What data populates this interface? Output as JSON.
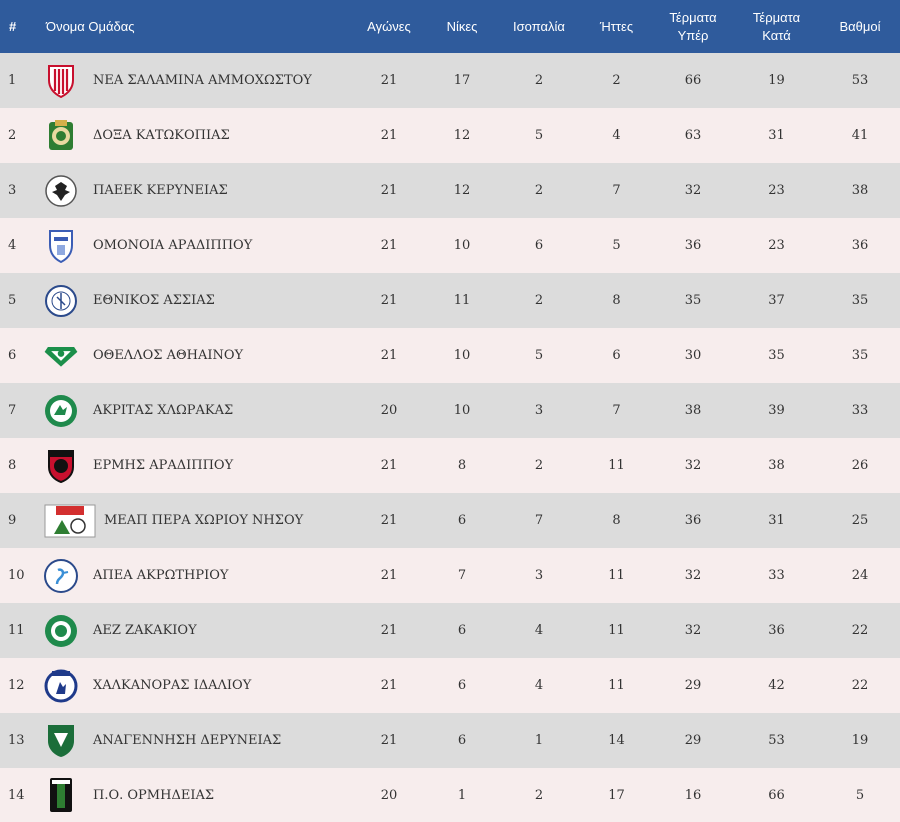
{
  "headers": {
    "pos": "#",
    "team": "Όνομα Ομάδας",
    "played": "Αγώνες",
    "wins": "Νίκες",
    "draws": "Ισοπαλία",
    "losses": "Ήττες",
    "goals_for_1": "Τέρματα",
    "goals_for_2": "Υπέρ",
    "goals_against_1": "Τέρματα",
    "goals_against_2": "Κατά",
    "points": "Βαθμοί"
  },
  "colors": {
    "header_bg": "#2f5b9c",
    "row_odd": "#dcdcdc",
    "row_even": "#f7eded"
  },
  "rows": [
    {
      "pos": "1",
      "team": "ΝΕΑ ΣΑΛΑΜΙΝΑ ΑΜΜΟΧΩΣΤΟΥ",
      "logo": "nea-salamina-crest-icon",
      "played": "21",
      "wins": "17",
      "draws": "2",
      "losses": "2",
      "gf": "66",
      "ga": "19",
      "pts": "53"
    },
    {
      "pos": "2",
      "team": "ΔΟΞΑ ΚΑΤΩΚΟΠΙΑΣ",
      "logo": "doxa-crest-icon",
      "played": "21",
      "wins": "12",
      "draws": "5",
      "losses": "4",
      "gf": "63",
      "ga": "31",
      "pts": "41"
    },
    {
      "pos": "3",
      "team": "ΠΑΕΕΚ ΚΕΡΥΝΕΙΑΣ",
      "logo": "paeek-crest-icon",
      "played": "21",
      "wins": "12",
      "draws": "2",
      "losses": "7",
      "gf": "32",
      "ga": "23",
      "pts": "38"
    },
    {
      "pos": "4",
      "team": "ΟΜΟΝΟΙΑ ΑΡΑΔΙΠΠΟΥ",
      "logo": "omonoia-aradippou-crest-icon",
      "played": "21",
      "wins": "10",
      "draws": "6",
      "losses": "5",
      "gf": "36",
      "ga": "23",
      "pts": "36"
    },
    {
      "pos": "5",
      "team": "ΕΘΝΙΚΟΣ ΑΣΣΙΑΣ",
      "logo": "ethnikos-assias-crest-icon",
      "played": "21",
      "wins": "11",
      "draws": "2",
      "losses": "8",
      "gf": "35",
      "ga": "37",
      "pts": "35"
    },
    {
      "pos": "6",
      "team": "ΟΘΕΛΛΟΣ ΑΘΗΑΙΝΟΥ",
      "logo": "othellos-crest-icon",
      "played": "21",
      "wins": "10",
      "draws": "5",
      "losses": "6",
      "gf": "30",
      "ga": "35",
      "pts": "35"
    },
    {
      "pos": "7",
      "team": "ΑΚΡΙΤΑΣ ΧΛΩΡΑΚΑΣ",
      "logo": "akritas-crest-icon",
      "played": "20",
      "wins": "10",
      "draws": "3",
      "losses": "7",
      "gf": "38",
      "ga": "39",
      "pts": "33"
    },
    {
      "pos": "8",
      "team": "ΕΡΜΗΣ ΑΡΑΔΙΠΠΟΥ",
      "logo": "ermis-crest-icon",
      "played": "21",
      "wins": "8",
      "draws": "2",
      "losses": "11",
      "gf": "32",
      "ga": "38",
      "pts": "26"
    },
    {
      "pos": "9",
      "team": "ΜΕΑΠ ΠΕΡΑ ΧΩΡΙΟΥ ΝΗΣΟΥ",
      "logo": "meap-crest-icon",
      "played": "21",
      "wins": "6",
      "draws": "7",
      "losses": "8",
      "gf": "36",
      "ga": "31",
      "pts": "25"
    },
    {
      "pos": "10",
      "team": "ΑΠΕΑ ΑΚΡΩΤΗΡΙΟΥ",
      "logo": "apea-crest-icon",
      "played": "21",
      "wins": "7",
      "draws": "3",
      "losses": "11",
      "gf": "32",
      "ga": "33",
      "pts": "24"
    },
    {
      "pos": "11",
      "team": "ΑΕΖ ΖΑΚΑΚΙΟΥ",
      "logo": "aez-crest-icon",
      "played": "21",
      "wins": "6",
      "draws": "4",
      "losses": "11",
      "gf": "32",
      "ga": "36",
      "pts": "22"
    },
    {
      "pos": "12",
      "team": "ΧΑΛΚΑΝΟΡΑΣ ΙΔΑΛΙΟΥ",
      "logo": "chalkanoras-crest-icon",
      "played": "21",
      "wins": "6",
      "draws": "4",
      "losses": "11",
      "gf": "29",
      "ga": "42",
      "pts": "22"
    },
    {
      "pos": "13",
      "team": "ΑΝΑΓΕΝΝΗΣΗ ΔΕΡΥΝΕΙΑΣ",
      "logo": "anagennisi-crest-icon",
      "played": "21",
      "wins": "6",
      "draws": "1",
      "losses": "14",
      "gf": "29",
      "ga": "53",
      "pts": "19"
    },
    {
      "pos": "14",
      "team": "Π.Ο. ΟΡΜΗΔΕΙΑΣ",
      "logo": "ormideia-crest-icon",
      "played": "20",
      "wins": "1",
      "draws": "2",
      "losses": "17",
      "gf": "16",
      "ga": "66",
      "pts": "5"
    }
  ]
}
